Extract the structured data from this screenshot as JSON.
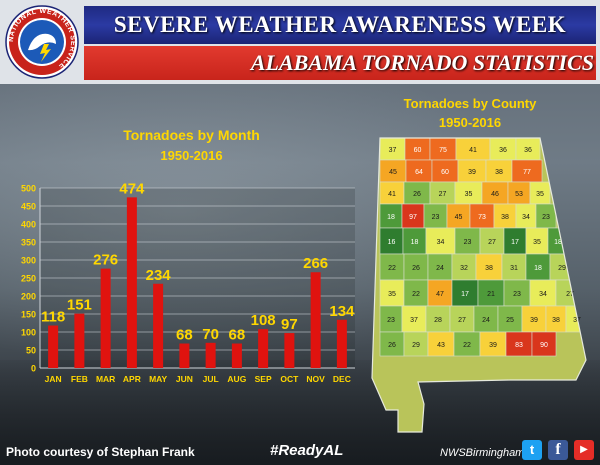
{
  "header": {
    "title": "Severe Weather Awareness Week",
    "subtitle": "Alabama Tornado Statistics"
  },
  "logo": {
    "text": "NATIONAL WEATHER SERVICE"
  },
  "chart_data": [
    {
      "type": "bar",
      "title": "Tornadoes by Month",
      "subtitle": "1950-2016",
      "categories": [
        "JAN",
        "FEB",
        "MAR",
        "APR",
        "MAY",
        "JUN",
        "JUL",
        "AUG",
        "SEP",
        "OCT",
        "NOV",
        "DEC"
      ],
      "values": [
        118,
        151,
        276,
        474,
        234,
        68,
        70,
        68,
        108,
        97,
        266,
        134
      ],
      "ylim": [
        0,
        500
      ],
      "yticks": [
        0,
        50,
        100,
        150,
        200,
        250,
        300,
        350,
        400,
        450,
        500
      ],
      "grid": true,
      "bar_color": "#e0130f",
      "label_color": "#ffd700"
    },
    {
      "type": "choropleth",
      "title": "Tornadoes by County",
      "subtitle": "1950-2016",
      "county_values": [
        37,
        60,
        75,
        41,
        36,
        36,
        45,
        64,
        60,
        39,
        38,
        77,
        41,
        26,
        27,
        35,
        46,
        53,
        35,
        18,
        97,
        23,
        45,
        73,
        38,
        34,
        23,
        16,
        18,
        34,
        23,
        27,
        17,
        35,
        18,
        22,
        26,
        24,
        32,
        38,
        31,
        18,
        29,
        35,
        22,
        47,
        17,
        21,
        23,
        34,
        27,
        23,
        37,
        28,
        27,
        24,
        25,
        39,
        38,
        37,
        26,
        29,
        43,
        22,
        39,
        83,
        90
      ]
    }
  ],
  "footer": {
    "credit": "Photo courtesy of Stephan Frank",
    "hashtag": "#ReadyAL",
    "handle": "NWSBirmingham"
  }
}
